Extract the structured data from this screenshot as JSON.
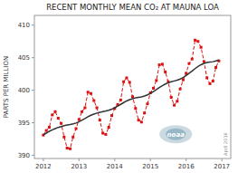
{
  "chart_data": {
    "type": "line",
    "title": "RECENT MONTHLY MEAN CO₂ AT MAUNA LOA",
    "ylabel": "PARTS PER MILLION",
    "annotations": [
      "noaa",
      "April 2016"
    ],
    "xlim": [
      2011.75,
      2017.25
    ],
    "ylim": [
      389.5,
      411.5
    ],
    "xticks": [
      2012,
      2013,
      2014,
      2015,
      2016,
      2017
    ],
    "yticks": [
      390,
      395,
      400,
      405,
      410
    ],
    "x": [
      2012.0,
      2012.083,
      2012.167,
      2012.25,
      2012.333,
      2012.417,
      2012.5,
      2012.583,
      2012.667,
      2012.75,
      2012.833,
      2012.917,
      2013.0,
      2013.083,
      2013.167,
      2013.25,
      2013.333,
      2013.417,
      2013.5,
      2013.583,
      2013.667,
      2013.75,
      2013.833,
      2013.917,
      2014.0,
      2014.083,
      2014.167,
      2014.25,
      2014.333,
      2014.417,
      2014.5,
      2014.583,
      2014.667,
      2014.75,
      2014.833,
      2014.917,
      2015.0,
      2015.083,
      2015.167,
      2015.25,
      2015.333,
      2015.417,
      2015.5,
      2015.583,
      2015.667,
      2015.75,
      2015.833,
      2015.917,
      2016.0,
      2016.083,
      2016.167,
      2016.25,
      2016.333,
      2016.417,
      2016.5,
      2016.583,
      2016.667,
      2016.75,
      2016.833,
      2016.917
    ],
    "series": [
      {
        "color": "#dd1111",
        "marker": "square",
        "line_style": "dashed",
        "values": [
          393.1,
          393.8,
          394.3,
          396.2,
          396.7,
          395.7,
          394.9,
          392.8,
          391.1,
          391.0,
          392.8,
          394.1,
          395.5,
          396.7,
          397.3,
          399.7,
          399.5,
          398.4,
          397.3,
          395.4,
          393.4,
          393.2,
          394.3,
          396.1,
          397.2,
          397.8,
          398.5,
          401.3,
          401.9,
          401.2,
          399.0,
          397.2,
          395.4,
          395.1,
          396.5,
          397.9,
          399.6,
          400.3,
          401.5,
          403.9,
          404.0,
          402.8,
          401.3,
          398.9,
          397.7,
          398.3,
          400.2,
          401.6,
          402.6,
          404.1,
          404.8,
          407.7,
          407.5,
          406.6,
          404.4,
          401.9,
          401.0,
          401.4,
          403.5,
          404.5
        ]
      },
      {
        "color": "#333333",
        "line_style": "solid",
        "values": [
          393.15,
          393.4,
          393.68,
          393.9,
          394.1,
          394.28,
          394.42,
          394.55,
          394.65,
          394.72,
          394.82,
          394.95,
          395.15,
          395.4,
          395.65,
          395.92,
          396.15,
          396.33,
          396.48,
          396.6,
          396.7,
          396.8,
          396.92,
          397.08,
          397.3,
          397.55,
          397.82,
          398.1,
          398.35,
          398.55,
          398.7,
          398.82,
          398.9,
          398.98,
          399.1,
          399.28,
          399.52,
          399.8,
          400.1,
          400.42,
          400.7,
          400.95,
          401.15,
          401.3,
          401.42,
          401.55,
          401.72,
          401.95,
          402.25,
          402.6,
          402.95,
          403.32,
          403.65,
          403.92,
          404.12,
          404.25,
          404.32,
          404.38,
          404.5,
          404.65
        ]
      }
    ]
  }
}
